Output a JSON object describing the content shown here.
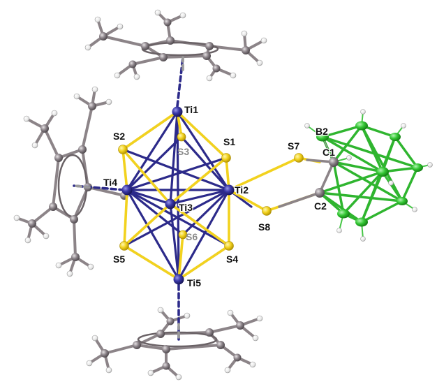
{
  "labels": {
    "Ti1": "Ti1",
    "Ti2": "Ti2",
    "Ti3": "Ti3",
    "Ti4": "Ti4",
    "Ti5": "Ti5",
    "S1": "S1",
    "S2": "S2",
    "S3": "S3",
    "S4": "S4",
    "S5": "S5",
    "S6": "S6",
    "S7": "S7",
    "S8": "S8",
    "C1": "C1",
    "C2": "C2",
    "B2": "B2"
  },
  "colors": {
    "titanium": "#2c2a8a",
    "sulfur": "#f2d21e",
    "boron": "#33c633",
    "carbon": "#8a8288",
    "hydrogen": "#f2f2f2",
    "centroid_bond": "#2c2a8a"
  }
}
